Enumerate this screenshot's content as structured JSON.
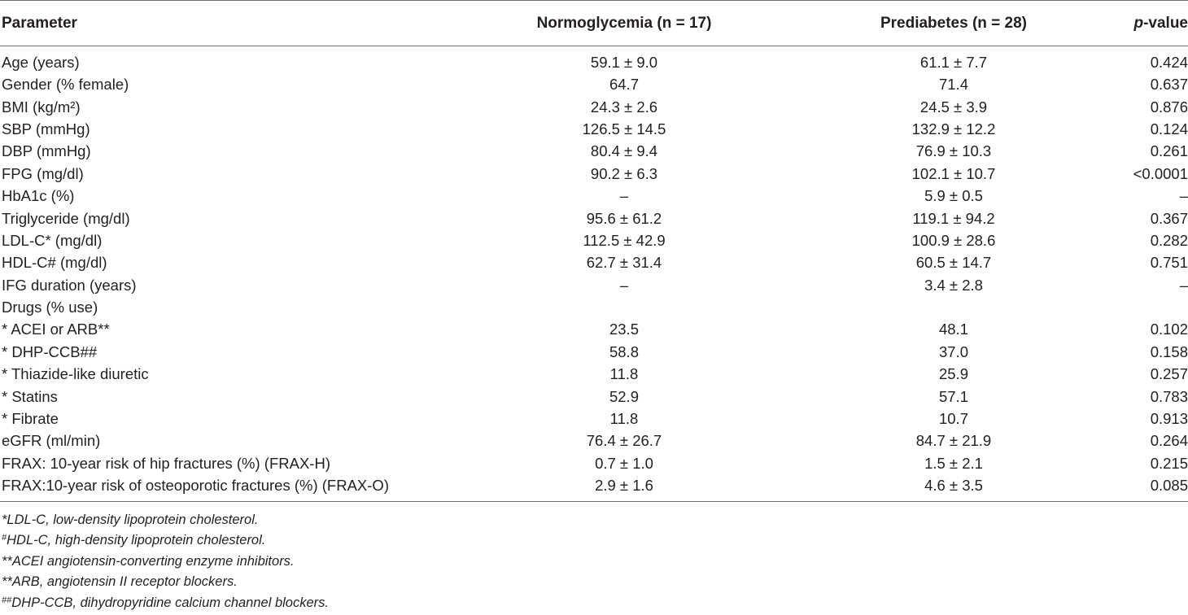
{
  "header": {
    "parameter": "Parameter",
    "normoglycemia": "Normoglycemia (n = 17)",
    "prediabetes": "Prediabetes (n = 28)",
    "pvalue_p": "p",
    "pvalue_rest": "-value"
  },
  "rows": [
    {
      "param": "Age (years)",
      "normo": "59.1 ± 9.0",
      "pre": "61.1 ± 7.7",
      "p": "0.424"
    },
    {
      "param": "Gender (% female)",
      "normo": "64.7",
      "pre": "71.4",
      "p": "0.637"
    },
    {
      "param": "BMI (kg/m²)",
      "normo": "24.3 ± 2.6",
      "pre": "24.5 ± 3.9",
      "p": "0.876"
    },
    {
      "param": "SBP (mmHg)",
      "normo": "126.5 ± 14.5",
      "pre": "132.9 ± 12.2",
      "p": "0.124"
    },
    {
      "param": "DBP (mmHg)",
      "normo": "80.4 ± 9.4",
      "pre": "76.9 ± 10.3",
      "p": "0.261"
    },
    {
      "param": "FPG (mg/dl)",
      "normo": "90.2 ± 6.3",
      "pre": "102.1 ± 10.7",
      "p": "<0.0001"
    },
    {
      "param": "HbA1c (%)",
      "normo": "–",
      "pre": "5.9 ± 0.5",
      "p": "–"
    },
    {
      "param": "Triglyceride (mg/dl)",
      "normo": "95.6 ± 61.2",
      "pre": "119.1 ± 94.2",
      "p": "0.367"
    },
    {
      "param": "LDL-C* (mg/dl)",
      "normo": "112.5 ± 42.9",
      "pre": "100.9 ± 28.6",
      "p": "0.282"
    },
    {
      "param": "HDL-C# (mg/dl)",
      "normo": "62.7 ± 31.4",
      "pre": "60.5 ± 14.7",
      "p": "0.751"
    },
    {
      "param": "IFG duration (years)",
      "normo": "–",
      "pre": "3.4 ± 2.8",
      "p": "–"
    },
    {
      "param": "Drugs (% use)",
      "normo": "",
      "pre": "",
      "p": ""
    },
    {
      "param": "* ACEI or ARB**",
      "normo": "23.5",
      "pre": "48.1",
      "p": "0.102"
    },
    {
      "param": "* DHP-CCB##",
      "normo": "58.8",
      "pre": "37.0",
      "p": "0.158"
    },
    {
      "param": "* Thiazide-like diuretic",
      "normo": "11.8",
      "pre": "25.9",
      "p": "0.257"
    },
    {
      "param": "* Statins",
      "normo": "52.9",
      "pre": "57.1",
      "p": "0.783"
    },
    {
      "param": "* Fibrate",
      "normo": "11.8",
      "pre": "10.7",
      "p": "0.913"
    },
    {
      "param": "eGFR (ml/min)",
      "normo": "76.4 ± 26.7",
      "pre": "84.7 ± 21.9",
      "p": "0.264"
    },
    {
      "param": "FRAX: 10-year risk of hip fractures (%) (FRAX-H)",
      "normo": "0.7 ± 1.0",
      "pre": "1.5 ± 2.1",
      "p": "0.215"
    },
    {
      "param": "FRAX:10-year risk of osteoporotic fractures (%) (FRAX-O)",
      "normo": "2.9 ± 1.6",
      "pre": "4.6 ± 3.5",
      "p": "0.085"
    }
  ],
  "footnotes": [
    {
      "mark": "",
      "text": "*LDL-C, low-density lipoprotein cholesterol."
    },
    {
      "mark": "#",
      "text": "HDL-C, high-density lipoprotein cholesterol."
    },
    {
      "mark": "",
      "text": "**ACEI angiotensin-converting enzyme inhibitors."
    },
    {
      "mark": "",
      "text": "**ARB, angiotensin II receptor blockers."
    },
    {
      "mark": "##",
      "text": "DHP-CCB, dihydropyridine calcium channel blockers."
    }
  ]
}
